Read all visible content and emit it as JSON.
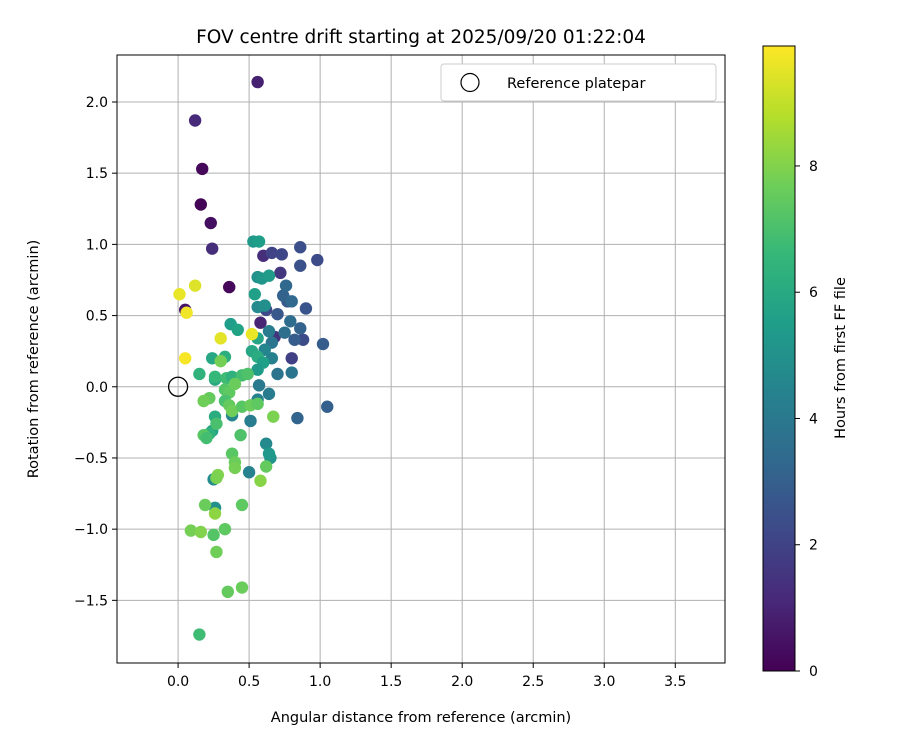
{
  "chart_data": {
    "type": "scatter",
    "title": "FOV centre drift starting at 2025/09/20 01:22:04",
    "xlabel": "Angular distance from reference (arcmin)",
    "ylabel": "Rotation from reference (arcmin)",
    "xlim": [
      -0.43,
      3.85
    ],
    "ylim": [
      -1.94,
      2.33
    ],
    "xticks": [
      0.0,
      0.5,
      1.0,
      1.5,
      2.0,
      2.5,
      3.0,
      3.5
    ],
    "xtick_labels": [
      "0.0",
      "0.5",
      "1.0",
      "1.5",
      "2.0",
      "2.5",
      "3.0",
      "3.5"
    ],
    "yticks": [
      -1.5,
      -1.0,
      -0.5,
      0.0,
      0.5,
      1.0,
      1.5,
      2.0
    ],
    "ytick_labels": [
      "−1.5",
      "−1.0",
      "−0.5",
      "0.0",
      "0.5",
      "1.0",
      "1.5",
      "2.0"
    ],
    "grid": true,
    "legend": {
      "position": "top-right",
      "entries": [
        "Reference platepar"
      ]
    },
    "reference_point": {
      "x": 0.0,
      "y": 0.0,
      "label": "Reference platepar"
    },
    "colorbar": {
      "label": "Hours from first FF file",
      "range": [
        0,
        9.9
      ],
      "ticks": [
        0,
        2,
        4,
        6,
        8
      ],
      "tick_labels": [
        "0",
        "2",
        "4",
        "6",
        "8"
      ],
      "colormap": "viridis",
      "colors": [
        "#440154",
        "#482878",
        "#3e4989",
        "#31688e",
        "#26828e",
        "#1f9e89",
        "#35b779",
        "#6ece58",
        "#b5de2b",
        "#fde725"
      ]
    },
    "points": [
      {
        "x": 0.56,
        "y": 2.14,
        "h": 0.9
      },
      {
        "x": 0.12,
        "y": 1.87,
        "h": 1.2
      },
      {
        "x": 0.17,
        "y": 1.53,
        "h": 0.2
      },
      {
        "x": 0.16,
        "y": 1.28,
        "h": 0.1
      },
      {
        "x": 0.23,
        "y": 1.15,
        "h": 0.4
      },
      {
        "x": 0.24,
        "y": 0.97,
        "h": 1.3
      },
      {
        "x": 0.36,
        "y": 0.7,
        "h": 0.2
      },
      {
        "x": 0.05,
        "y": 0.54,
        "h": 0.5
      },
      {
        "x": 0.58,
        "y": 0.45,
        "h": 1.0
      },
      {
        "x": 0.6,
        "y": 0.92,
        "h": 1.3
      },
      {
        "x": 0.72,
        "y": 0.8,
        "h": 1.6
      },
      {
        "x": 0.68,
        "y": 0.35,
        "h": 1.5
      },
      {
        "x": 0.8,
        "y": 0.2,
        "h": 1.9
      },
      {
        "x": 0.98,
        "y": 0.89,
        "h": 2.3
      },
      {
        "x": 0.86,
        "y": 0.98,
        "h": 2.4
      },
      {
        "x": 0.86,
        "y": 0.85,
        "h": 2.5
      },
      {
        "x": 0.88,
        "y": 0.33,
        "h": 2.3
      },
      {
        "x": 0.9,
        "y": 0.55,
        "h": 2.6
      },
      {
        "x": 1.02,
        "y": 0.3,
        "h": 2.9
      },
      {
        "x": 1.05,
        "y": -0.14,
        "h": 3.0
      },
      {
        "x": 0.84,
        "y": -0.22,
        "h": 3.2
      },
      {
        "x": 0.66,
        "y": 0.94,
        "h": 2.0
      },
      {
        "x": 0.73,
        "y": 0.93,
        "h": 2.1
      },
      {
        "x": 0.62,
        "y": 0.54,
        "h": 2.2
      },
      {
        "x": 0.7,
        "y": 0.51,
        "h": 2.7
      },
      {
        "x": 0.77,
        "y": 0.6,
        "h": 2.8
      },
      {
        "x": 0.74,
        "y": 0.64,
        "h": 3.1
      },
      {
        "x": 0.76,
        "y": 0.71,
        "h": 3.3
      },
      {
        "x": 0.8,
        "y": 0.6,
        "h": 3.4
      },
      {
        "x": 0.82,
        "y": 0.33,
        "h": 2.9
      },
      {
        "x": 0.86,
        "y": 0.41,
        "h": 3.1
      },
      {
        "x": 0.79,
        "y": 0.46,
        "h": 3.5
      },
      {
        "x": 0.75,
        "y": 0.38,
        "h": 3.6
      },
      {
        "x": 0.66,
        "y": 0.31,
        "h": 3.9
      },
      {
        "x": 0.64,
        "y": 0.39,
        "h": 4.1
      },
      {
        "x": 0.7,
        "y": 0.09,
        "h": 3.8
      },
      {
        "x": 0.8,
        "y": 0.1,
        "h": 3.9
      },
      {
        "x": 0.66,
        "y": 0.2,
        "h": 4.3
      },
      {
        "x": 0.61,
        "y": 0.26,
        "h": 4.5
      },
      {
        "x": 0.57,
        "y": 0.01,
        "h": 4.0
      },
      {
        "x": 0.64,
        "y": -0.05,
        "h": 4.1
      },
      {
        "x": 0.56,
        "y": -0.09,
        "h": 4.4
      },
      {
        "x": 0.51,
        "y": -0.24,
        "h": 4.2
      },
      {
        "x": 0.5,
        "y": -0.6,
        "h": 4.4
      },
      {
        "x": 0.62,
        "y": -0.4,
        "h": 4.7
      },
      {
        "x": 0.65,
        "y": -0.5,
        "h": 5.1
      },
      {
        "x": 0.64,
        "y": -0.47,
        "h": 5.3
      },
      {
        "x": 0.38,
        "y": -0.2,
        "h": 4.6
      },
      {
        "x": 0.25,
        "y": -0.65,
        "h": 4.8
      },
      {
        "x": 0.26,
        "y": -0.85,
        "h": 5.0
      },
      {
        "x": 0.53,
        "y": 1.02,
        "h": 5.3
      },
      {
        "x": 0.57,
        "y": 1.02,
        "h": 5.5
      },
      {
        "x": 0.56,
        "y": 0.77,
        "h": 5.0
      },
      {
        "x": 0.59,
        "y": 0.76,
        "h": 5.2
      },
      {
        "x": 0.64,
        "y": 0.78,
        "h": 5.4
      },
      {
        "x": 0.54,
        "y": 0.65,
        "h": 5.6
      },
      {
        "x": 0.56,
        "y": 0.56,
        "h": 4.7
      },
      {
        "x": 0.61,
        "y": 0.57,
        "h": 4.9
      },
      {
        "x": 0.56,
        "y": 0.34,
        "h": 5.8
      },
      {
        "x": 0.37,
        "y": 0.44,
        "h": 5.5
      },
      {
        "x": 0.42,
        "y": 0.4,
        "h": 5.7
      },
      {
        "x": 0.52,
        "y": 0.25,
        "h": 5.9
      },
      {
        "x": 0.56,
        "y": 0.21,
        "h": 6.1
      },
      {
        "x": 0.6,
        "y": 0.17,
        "h": 5.6
      },
      {
        "x": 0.56,
        "y": 0.12,
        "h": 5.4
      },
      {
        "x": 0.24,
        "y": 0.2,
        "h": 5.9
      },
      {
        "x": 0.33,
        "y": 0.21,
        "h": 6.2
      },
      {
        "x": 0.15,
        "y": 0.09,
        "h": 6.4
      },
      {
        "x": 0.26,
        "y": 0.05,
        "h": 6.0
      },
      {
        "x": 0.26,
        "y": 0.07,
        "h": 6.6
      },
      {
        "x": 0.34,
        "y": 0.06,
        "h": 6.8
      },
      {
        "x": 0.38,
        "y": 0.07,
        "h": 6.3
      },
      {
        "x": 0.45,
        "y": 0.08,
        "h": 6.9
      },
      {
        "x": 0.49,
        "y": 0.09,
        "h": 7.1
      },
      {
        "x": 0.26,
        "y": -0.21,
        "h": 6.1
      },
      {
        "x": 0.24,
        "y": -0.31,
        "h": 5.8
      },
      {
        "x": 0.22,
        "y": -0.33,
        "h": 6.4
      },
      {
        "x": 0.27,
        "y": -0.26,
        "h": 7.0
      },
      {
        "x": 0.18,
        "y": -0.34,
        "h": 7.3
      },
      {
        "x": 0.2,
        "y": -0.36,
        "h": 6.9
      },
      {
        "x": 0.33,
        "y": -0.02,
        "h": 7.2
      },
      {
        "x": 0.36,
        "y": -0.04,
        "h": 7.4
      },
      {
        "x": 0.4,
        "y": 0.02,
        "h": 7.6
      },
      {
        "x": 0.33,
        "y": -0.1,
        "h": 7.0
      },
      {
        "x": 0.36,
        "y": -0.13,
        "h": 7.5
      },
      {
        "x": 0.38,
        "y": -0.17,
        "h": 7.7
      },
      {
        "x": 0.45,
        "y": -0.14,
        "h": 7.3
      },
      {
        "x": 0.51,
        "y": -0.13,
        "h": 7.6
      },
      {
        "x": 0.56,
        "y": -0.12,
        "h": 7.4
      },
      {
        "x": 0.3,
        "y": 0.18,
        "h": 7.8
      },
      {
        "x": 0.22,
        "y": -0.08,
        "h": 7.5
      },
      {
        "x": 0.18,
        "y": -0.1,
        "h": 7.7
      },
      {
        "x": 0.67,
        "y": -0.21,
        "h": 7.9
      },
      {
        "x": 0.44,
        "y": -0.34,
        "h": 7.1
      },
      {
        "x": 0.38,
        "y": -0.47,
        "h": 7.3
      },
      {
        "x": 0.4,
        "y": -0.53,
        "h": 7.6
      },
      {
        "x": 0.4,
        "y": -0.57,
        "h": 7.8
      },
      {
        "x": 0.62,
        "y": -0.56,
        "h": 7.5
      },
      {
        "x": 0.28,
        "y": -0.62,
        "h": 8.0
      },
      {
        "x": 0.27,
        "y": -0.64,
        "h": 7.9
      },
      {
        "x": 0.58,
        "y": -0.66,
        "h": 8.1
      },
      {
        "x": 0.19,
        "y": -0.83,
        "h": 7.6
      },
      {
        "x": 0.45,
        "y": -0.83,
        "h": 7.4
      },
      {
        "x": 0.26,
        "y": -0.89,
        "h": 8.2
      },
      {
        "x": 0.09,
        "y": -1.01,
        "h": 7.8
      },
      {
        "x": 0.16,
        "y": -1.02,
        "h": 8.0
      },
      {
        "x": 0.25,
        "y": -1.04,
        "h": 7.2
      },
      {
        "x": 0.33,
        "y": -1.0,
        "h": 7.4
      },
      {
        "x": 0.27,
        "y": -1.16,
        "h": 7.7
      },
      {
        "x": 0.35,
        "y": -1.44,
        "h": 7.5
      },
      {
        "x": 0.45,
        "y": -1.41,
        "h": 7.6
      },
      {
        "x": 0.15,
        "y": -1.74,
        "h": 6.8
      },
      {
        "x": 0.01,
        "y": 0.65,
        "h": 9.6
      },
      {
        "x": 0.12,
        "y": 0.71,
        "h": 9.4
      },
      {
        "x": 0.06,
        "y": 0.52,
        "h": 9.7
      },
      {
        "x": 0.3,
        "y": 0.34,
        "h": 9.5
      },
      {
        "x": 0.52,
        "y": 0.37,
        "h": 9.6
      },
      {
        "x": 0.05,
        "y": 0.2,
        "h": 9.8
      }
    ]
  }
}
